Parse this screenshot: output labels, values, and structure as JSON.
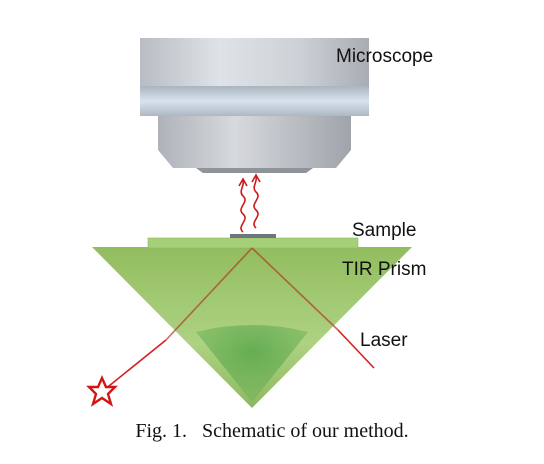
{
  "labels": {
    "microscope": "Microscope",
    "sample": "Sample",
    "prism": "TIR Prism",
    "laser": "Laser"
  },
  "caption": "Fig. 1.   Schematic of our method.",
  "colors": {
    "prism": "#8fbf55",
    "microscope": "#c4c9cf",
    "laser": "#d42020",
    "sample_slide": "#a6cf7a",
    "emission": "#cc1b1b"
  },
  "icons": {
    "laser_source": "red-star-icon",
    "emission": "wavy-arrow-icon"
  }
}
